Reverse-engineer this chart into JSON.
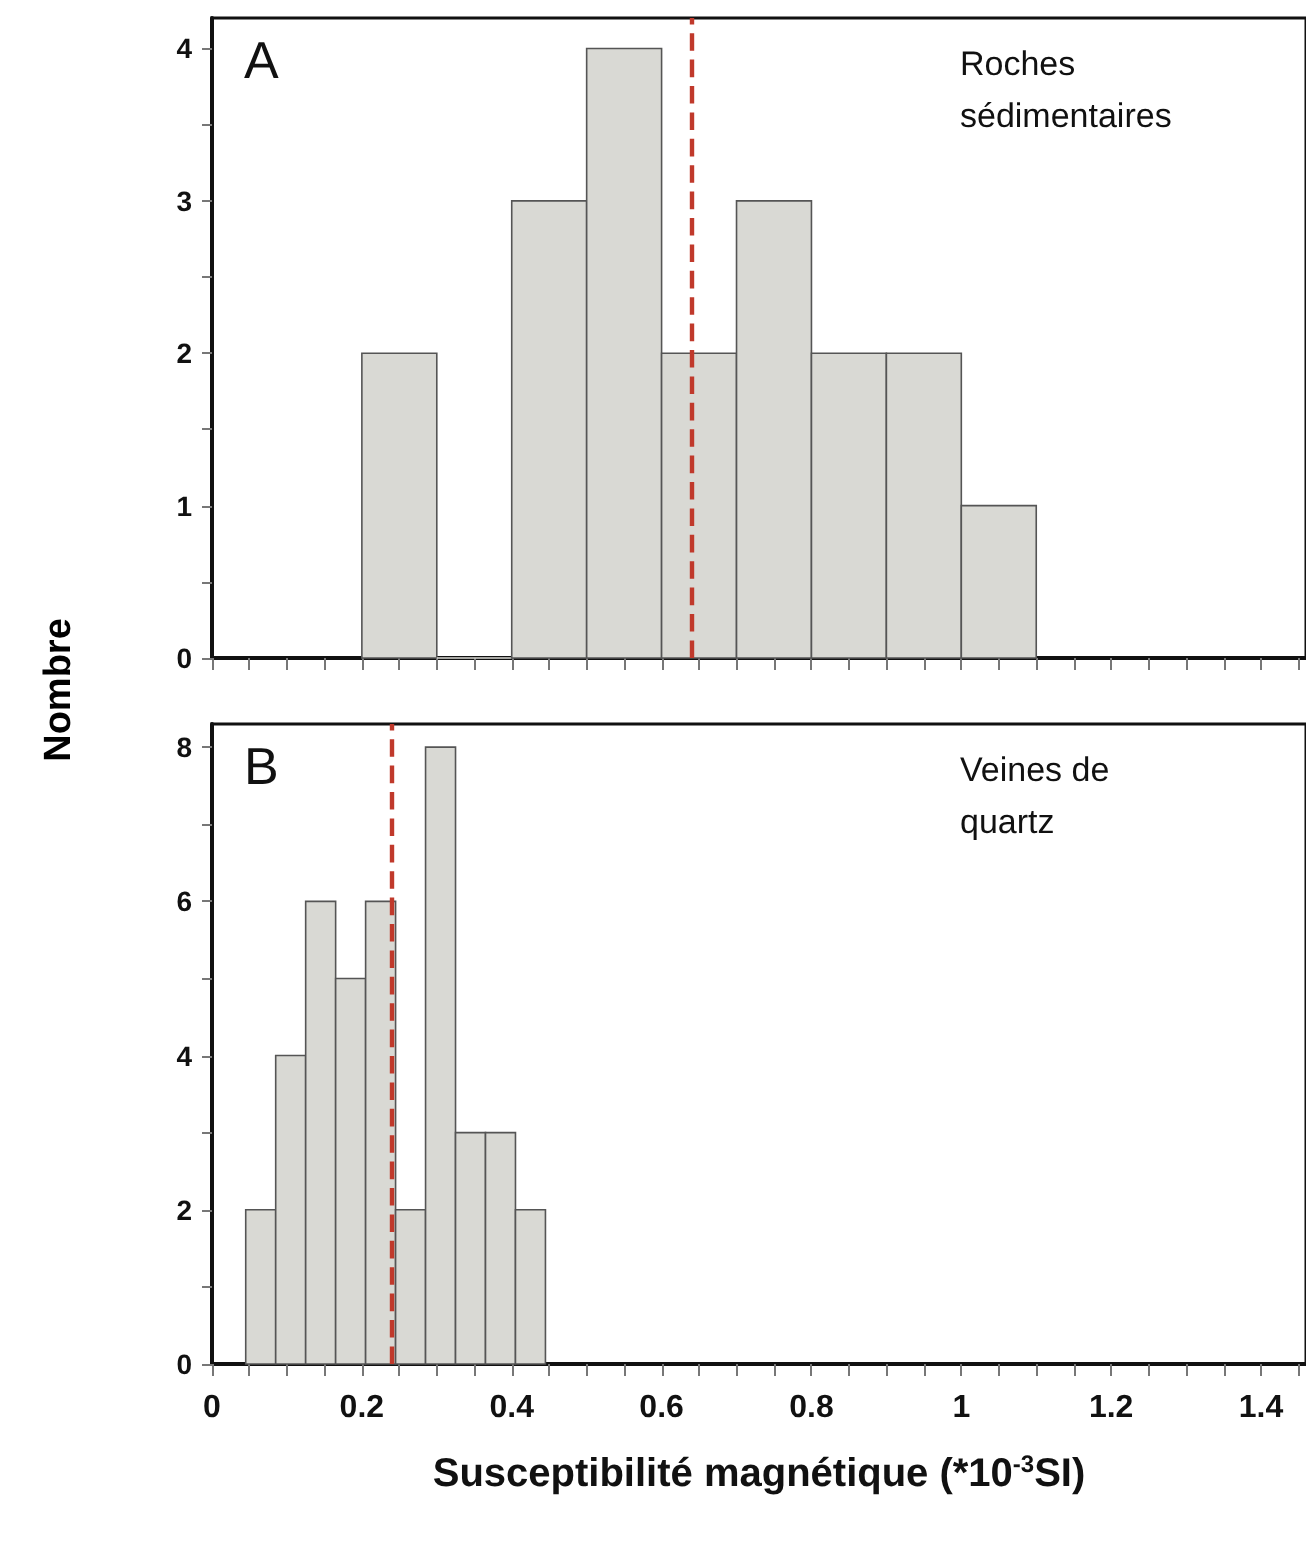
{
  "chart_data": [
    {
      "type": "histogram",
      "ylabel": "Nombre",
      "annotations": [
        "A",
        "Roches\nsédimentaires"
      ],
      "bins": [
        0.2,
        0.3,
        0.4,
        0.5,
        0.6,
        0.7,
        0.8,
        0.9,
        1.0,
        1.1
      ],
      "values": [
        2,
        0,
        3,
        4,
        2,
        3,
        2,
        2,
        1
      ],
      "color": "#d9d9d4",
      "xlim": [
        0,
        1.46
      ],
      "ylim": [
        0,
        4.2
      ],
      "xticks": [
        {
          "value": 0,
          "label": null
        },
        {
          "value": 0.05,
          "label": null
        },
        {
          "value": 0.1,
          "label": null
        },
        {
          "value": 0.15,
          "label": null
        },
        {
          "value": 0.2,
          "label": null
        },
        {
          "value": 0.25,
          "label": null
        },
        {
          "value": 0.3,
          "label": null
        },
        {
          "value": 0.35,
          "label": null
        },
        {
          "value": 0.4,
          "label": null
        },
        {
          "value": 0.45,
          "label": null
        },
        {
          "value": 0.5,
          "label": null
        },
        {
          "value": 0.55,
          "label": null
        },
        {
          "value": 0.6,
          "label": null
        },
        {
          "value": 0.65,
          "label": null
        },
        {
          "value": 0.7,
          "label": null
        },
        {
          "value": 0.75,
          "label": null
        },
        {
          "value": 0.8,
          "label": null
        },
        {
          "value": 0.85,
          "label": null
        },
        {
          "value": 0.9,
          "label": null
        },
        {
          "value": 0.95,
          "label": null
        },
        {
          "value": 1.0,
          "label": null
        },
        {
          "value": 1.05,
          "label": null
        },
        {
          "value": 1.1,
          "label": null
        },
        {
          "value": 1.15,
          "label": null
        },
        {
          "value": 1.2,
          "label": null
        },
        {
          "value": 1.25,
          "label": null
        },
        {
          "value": 1.3,
          "label": null
        },
        {
          "value": 1.35,
          "label": null
        },
        {
          "value": 1.4,
          "label": null
        },
        {
          "value": 1.45,
          "label": null
        }
      ],
      "yticks": [
        0,
        {
          "value": 0.5,
          "label": null
        },
        1,
        {
          "value": 1.5,
          "label": null
        },
        2,
        {
          "value": 2.5,
          "label": null
        },
        3,
        {
          "value": 3.5,
          "label": null
        },
        4
      ],
      "tick_labels": "y",
      "grid": false,
      "ref_lines": [
        {
          "axis": "x",
          "value": 0.64,
          "color": "#c0392b",
          "line_style": "dashed"
        }
      ]
    },
    {
      "type": "histogram",
      "xlabel": "Susceptibilité magnétique (*10$^{-3}$SI)",
      "annotations": [
        "B",
        "Veines de\nquartz"
      ],
      "bins": [
        0.045,
        0.085,
        0.125,
        0.165,
        0.205,
        0.245,
        0.285,
        0.325,
        0.365,
        0.405,
        0.445
      ],
      "values": [
        2,
        4,
        6,
        5,
        6,
        2,
        8,
        3,
        3,
        2
      ],
      "color": "#d9d9d4",
      "xlim": [
        0,
        1.46
      ],
      "ylim": [
        0,
        8.3
      ],
      "xticks": [
        0,
        {
          "value": 0.05,
          "label": null
        },
        {
          "value": 0.1,
          "label": null
        },
        {
          "value": 0.15,
          "label": null
        },
        0.2,
        {
          "value": 0.25,
          "label": null
        },
        {
          "value": 0.3,
          "label": null
        },
        {
          "value": 0.35,
          "label": null
        },
        0.4,
        {
          "value": 0.45,
          "label": null
        },
        {
          "value": 0.5,
          "label": null
        },
        {
          "value": 0.55,
          "label": null
        },
        0.6,
        {
          "value": 0.65,
          "label": null
        },
        {
          "value": 0.7,
          "label": null
        },
        {
          "value": 0.75,
          "label": null
        },
        0.8,
        {
          "value": 0.85,
          "label": null
        },
        {
          "value": 0.9,
          "label": null
        },
        {
          "value": 0.95,
          "label": null
        },
        1,
        {
          "value": 1.05,
          "label": null
        },
        {
          "value": 1.1,
          "label": null
        },
        {
          "value": 1.15,
          "label": null
        },
        1.2,
        {
          "value": 1.25,
          "label": null
        },
        {
          "value": 1.3,
          "label": null
        },
        {
          "value": 1.35,
          "label": null
        },
        1.4,
        {
          "value": 1.45,
          "label": null
        }
      ],
      "yticks": [
        0,
        {
          "value": 1,
          "label": null
        },
        2,
        {
          "value": 3,
          "label": null
        },
        4,
        {
          "value": 5,
          "label": null
        },
        6,
        {
          "value": 7,
          "label": null
        },
        8
      ],
      "grid": false,
      "ref_lines": [
        {
          "axis": "x",
          "value": 0.24,
          "color": "#c0392b",
          "line_style": "dashed"
        }
      ]
    }
  ]
}
